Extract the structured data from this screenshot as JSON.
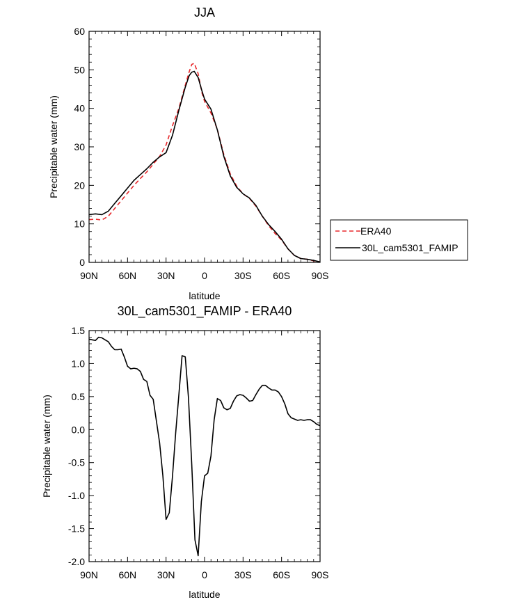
{
  "colors": {
    "era40": "#e8282b",
    "model": "#000000"
  },
  "chart_data": [
    {
      "type": "line",
      "title": "JJA",
      "xlabel": "latitude",
      "ylabel": "Precipitable water (mm)",
      "xlim": [
        90,
        -90
      ],
      "ylim": [
        0,
        60
      ],
      "xticks": [
        {
          "value": 90,
          "label": "90N"
        },
        {
          "value": 60,
          "label": "60N"
        },
        {
          "value": 30,
          "label": "30N"
        },
        {
          "value": 0,
          "label": "0"
        },
        {
          "value": -30,
          "label": "30S"
        },
        {
          "value": -60,
          "label": "60S"
        },
        {
          "value": -90,
          "label": "90S"
        }
      ],
      "yticks": [
        {
          "value": 0,
          "label": "0"
        },
        {
          "value": 10,
          "label": "10"
        },
        {
          "value": 20,
          "label": "20"
        },
        {
          "value": 30,
          "label": "30"
        },
        {
          "value": 40,
          "label": "40"
        },
        {
          "value": 50,
          "label": "50"
        },
        {
          "value": 60,
          "label": "60"
        }
      ],
      "legend": {
        "placement": "right"
      },
      "series": [
        {
          "name": "ERA40",
          "style": "dashed",
          "color": "#e8282b",
          "x": [
            90,
            85,
            80,
            75,
            70,
            65,
            60,
            55,
            50,
            45,
            40,
            35,
            30,
            25,
            20,
            15,
            12,
            10,
            8,
            5,
            2,
            0,
            -5,
            -10,
            -15,
            -20,
            -25,
            -30,
            -35,
            -40,
            -45,
            -50,
            -55,
            -60,
            -65,
            -70,
            -75,
            -80,
            -85,
            -90
          ],
          "values": [
            11.1,
            11.2,
            11.0,
            12.0,
            14.0,
            16.0,
            18.0,
            20.0,
            21.8,
            23.5,
            25.5,
            27.5,
            30.5,
            35.5,
            40.0,
            46.0,
            49.5,
            51.4,
            51.7,
            49.0,
            44.0,
            41.8,
            38.8,
            34.5,
            28.0,
            23.0,
            19.8,
            17.8,
            16.6,
            14.6,
            12.0,
            9.5,
            7.5,
            5.8,
            3.5,
            1.8,
            1.0,
            0.8,
            0.4,
            0.1
          ]
        },
        {
          "name": "30L_cam5301_FAMIP",
          "style": "solid",
          "color": "#000000",
          "x": [
            90,
            85,
            80,
            75,
            70,
            65,
            60,
            55,
            50,
            45,
            40,
            35,
            30,
            25,
            20,
            15,
            12,
            10,
            8,
            5,
            2,
            0,
            -5,
            -10,
            -15,
            -20,
            -25,
            -30,
            -35,
            -40,
            -45,
            -50,
            -55,
            -60,
            -65,
            -70,
            -75,
            -80,
            -85,
            -90
          ],
          "values": [
            12.4,
            12.6,
            12.4,
            13.3,
            15.3,
            17.3,
            19.3,
            21.3,
            22.8,
            24.3,
            26.0,
            27.4,
            28.5,
            33.0,
            39.5,
            45.5,
            48.5,
            49.4,
            49.6,
            48.0,
            44.5,
            42.4,
            39.8,
            34.4,
            27.5,
            22.5,
            19.5,
            17.8,
            16.7,
            14.8,
            12.0,
            9.8,
            8.0,
            6.0,
            3.5,
            1.8,
            1.0,
            0.8,
            0.5,
            0.1
          ]
        }
      ]
    },
    {
      "type": "line",
      "title": "30L_cam5301_FAMIP - ERA40",
      "xlabel": "latitude",
      "ylabel": "Precipitable water (mm)",
      "xlim": [
        90,
        -90
      ],
      "ylim": [
        -2.0,
        1.5
      ],
      "xticks": [
        {
          "value": 90,
          "label": "90N"
        },
        {
          "value": 60,
          "label": "60N"
        },
        {
          "value": 30,
          "label": "30N"
        },
        {
          "value": 0,
          "label": "0"
        },
        {
          "value": -30,
          "label": "30S"
        },
        {
          "value": -60,
          "label": "60S"
        },
        {
          "value": -90,
          "label": "90S"
        }
      ],
      "yticks": [
        {
          "value": -2.0,
          "label": "-2.0"
        },
        {
          "value": -1.5,
          "label": "-1.5"
        },
        {
          "value": -1.0,
          "label": "-1.0"
        },
        {
          "value": -0.5,
          "label": "-0.5"
        },
        {
          "value": 0.0,
          "label": "0.0"
        },
        {
          "value": 0.5,
          "label": "0.5"
        },
        {
          "value": 1.0,
          "label": "1.0"
        },
        {
          "value": 1.5,
          "label": "1.5"
        }
      ],
      "series": [
        {
          "style": "solid",
          "color": "#000000",
          "x": [
            90,
            87.5,
            85,
            82.5,
            80,
            77.5,
            75,
            72.5,
            70,
            67.5,
            65,
            62.5,
            60,
            57.5,
            55,
            52.5,
            50,
            47.5,
            45,
            42.5,
            40,
            37.5,
            35,
            32.5,
            30,
            27.5,
            25,
            22.5,
            20,
            17.5,
            15,
            12.5,
            10,
            7.5,
            5,
            2.5,
            0,
            -2.5,
            -5,
            -7.5,
            -10,
            -12.5,
            -15,
            -17.5,
            -20,
            -22.5,
            -25,
            -27.5,
            -30,
            -32.5,
            -35,
            -37.5,
            -40,
            -42.5,
            -45,
            -47.5,
            -50,
            -52.5,
            -55,
            -57.5,
            -60,
            -62.5,
            -65,
            -67.5,
            -70,
            -72.5,
            -75,
            -77.5,
            -80,
            -82.5,
            -85,
            -87.5,
            -90
          ],
          "values": [
            1.37,
            1.36,
            1.35,
            1.4,
            1.39,
            1.36,
            1.33,
            1.26,
            1.21,
            1.21,
            1.22,
            1.1,
            0.96,
            0.92,
            0.93,
            0.92,
            0.88,
            0.76,
            0.73,
            0.52,
            0.46,
            0.13,
            -0.2,
            -0.7,
            -1.36,
            -1.26,
            -0.71,
            -0.05,
            0.53,
            1.12,
            1.1,
            0.48,
            -0.53,
            -1.67,
            -1.91,
            -1.09,
            -0.7,
            -0.66,
            -0.4,
            0.15,
            0.47,
            0.44,
            0.33,
            0.3,
            0.32,
            0.43,
            0.51,
            0.53,
            0.52,
            0.48,
            0.43,
            0.44,
            0.53,
            0.61,
            0.67,
            0.67,
            0.63,
            0.6,
            0.6,
            0.57,
            0.5,
            0.39,
            0.24,
            0.18,
            0.16,
            0.14,
            0.15,
            0.14,
            0.15,
            0.15,
            0.12,
            0.08,
            0.06
          ]
        }
      ]
    }
  ]
}
